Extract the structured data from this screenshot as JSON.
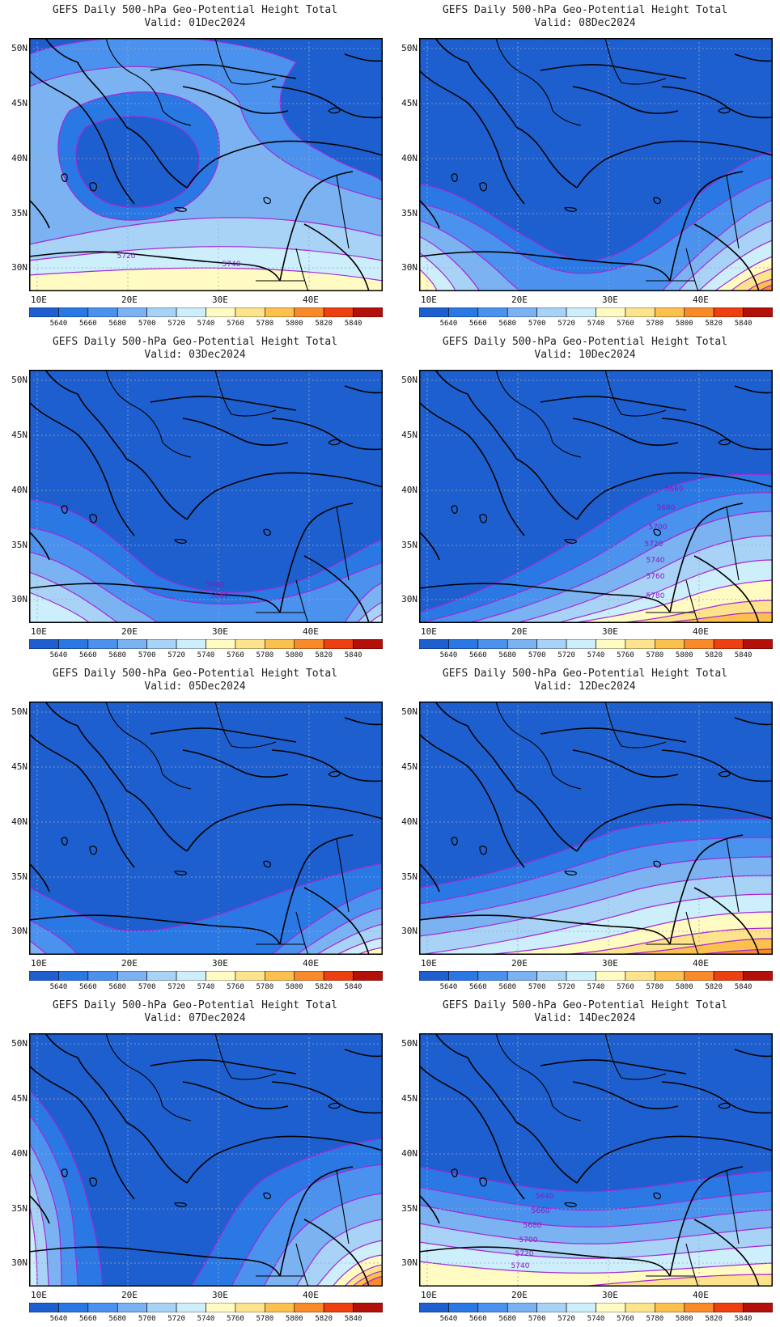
{
  "figure": {
    "panels": [
      {
        "id": "p01",
        "title": "GEFS Daily 500-hPa Geo-Potential Height Total",
        "valid": "Valid: 01Dec2024",
        "contour_labels": [
          "5720",
          "5740"
        ]
      },
      {
        "id": "p08",
        "title": "GEFS Daily 500-hPa Geo-Potential Height Total",
        "valid": "Valid: 08Dec2024",
        "contour_labels": []
      },
      {
        "id": "p03",
        "title": "GEFS Daily 500-hPa Geo-Potential Height Total",
        "valid": "Valid: 03Dec2024",
        "contour_labels": [
          "5640",
          "5660"
        ]
      },
      {
        "id": "p10",
        "title": "GEFS Daily 500-hPa Geo-Potential Height Total",
        "valid": "Valid: 10Dec2024",
        "contour_labels": [
          "5660",
          "5680",
          "5700",
          "5720",
          "5740",
          "5760",
          "5780"
        ]
      },
      {
        "id": "p05",
        "title": "GEFS Daily 500-hPa Geo-Potential Height Total",
        "valid": "Valid: 05Dec2024",
        "contour_labels": []
      },
      {
        "id": "p12",
        "title": "GEFS Daily 500-hPa Geo-Potential Height Total",
        "valid": "Valid: 12Dec2024",
        "contour_labels": []
      },
      {
        "id": "p07",
        "title": "GEFS Daily 500-hPa Geo-Potential Height Total",
        "valid": "Valid: 07Dec2024",
        "contour_labels": []
      },
      {
        "id": "p14",
        "title": "GEFS Daily 500-hPa Geo-Potential Height Total",
        "valid": "Valid: 14Dec2024",
        "contour_labels": [
          "5640",
          "5660",
          "5680",
          "5700",
          "5720",
          "5740"
        ]
      }
    ],
    "lat_labels": [
      "50N",
      "45N",
      "40N",
      "35N",
      "30N"
    ],
    "lon_labels": [
      "10E",
      "20E",
      "30E",
      "40E"
    ],
    "colorbar": {
      "labels": [
        "5640",
        "5660",
        "5680",
        "5700",
        "5720",
        "5740",
        "5760",
        "5780",
        "5800",
        "5820",
        "5840"
      ],
      "colors": [
        "#1e5fcf",
        "#2a78e4",
        "#4a92ee",
        "#7bb2f2",
        "#a8d3f6",
        "#cdeefb",
        "#fffbc2",
        "#fde48c",
        "#fcc04e",
        "#f98a2a",
        "#ed3f10",
        "#b4100a"
      ]
    },
    "contour_line_color": "#a528d6"
  }
}
